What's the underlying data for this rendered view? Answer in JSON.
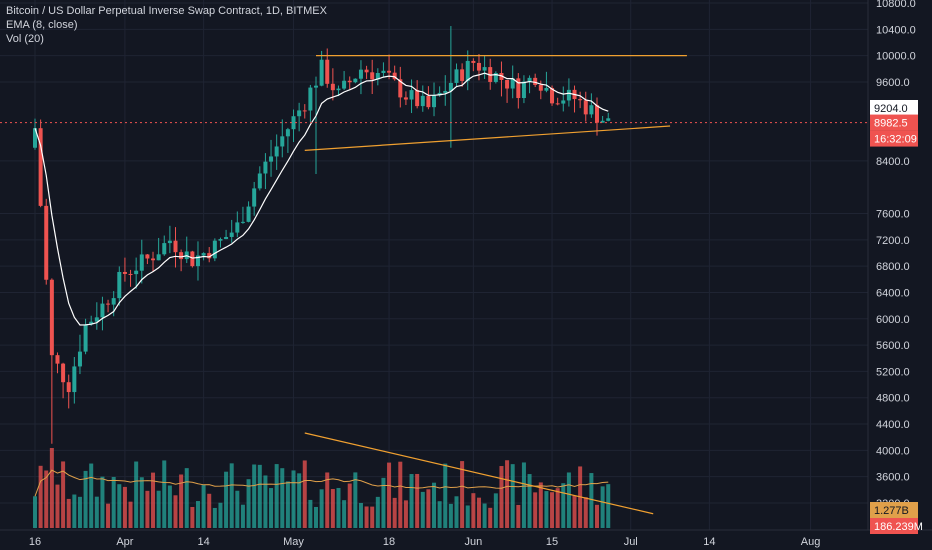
{
  "legend": {
    "title": "Bitcoin / US Dollar Perpetual Inverse Swap Contract, 1D, BITMEX",
    "ema": "EMA (8, close)",
    "vol": "Vol (20)"
  },
  "colors": {
    "background": "#131722",
    "grid": "#1f2433",
    "up": "#26a69a",
    "down": "#ef5350",
    "ema": "#ffffff",
    "trend": "#f0a030",
    "vol_ma": "#e0a04a",
    "price_tag": "#ef5350",
    "last_price_line": "#ef5350"
  },
  "chart_data": {
    "type": "candlestick",
    "y_axis_ticks": [
      "10800.0",
      "10400.0",
      "10000.0",
      "9600.0",
      "8400.0",
      "7600.0",
      "7200.0",
      "6800.0",
      "6400.0",
      "6000.0",
      "5600.0",
      "5200.0",
      "4800.0",
      "4400.0",
      "4000.0",
      "3600.0",
      "3200.0"
    ],
    "y_tick_values": [
      10800,
      10400,
      10000,
      9600,
      8400,
      7600,
      7200,
      6800,
      6400,
      6000,
      5600,
      5200,
      4800,
      4400,
      4000,
      3600,
      3200
    ],
    "x_axis_labels": [
      "16",
      "Apr",
      "14",
      "May",
      "18",
      "Jun",
      "15",
      "Jul",
      "14",
      "Aug"
    ],
    "x_label_days": [
      0,
      16,
      30,
      46,
      63,
      78,
      92,
      106,
      120,
      138
    ],
    "start_date": "2020-03-16",
    "ylim": [
      3150,
      10900
    ],
    "price_tags": {
      "ref_price": "9204.0",
      "last_price": "8982.5",
      "countdown": "16:32:09",
      "vol_ma": "1.277B",
      "vol_last": "186.239M"
    },
    "ohlc": [],
    "trend_lines": [
      {
        "name": "resistance",
        "from": {
          "day": 50,
          "price": 10000
        },
        "to": {
          "day": 116,
          "price": 10000
        }
      },
      {
        "name": "support",
        "from": {
          "day": 48,
          "price": 8560
        },
        "to": {
          "day": 113,
          "price": 8930
        }
      },
      {
        "name": "volume-trend",
        "from": {
          "day": 48,
          "vol": 1.0
        },
        "to": {
          "day": 110,
          "vol": 0.15
        }
      }
    ]
  }
}
